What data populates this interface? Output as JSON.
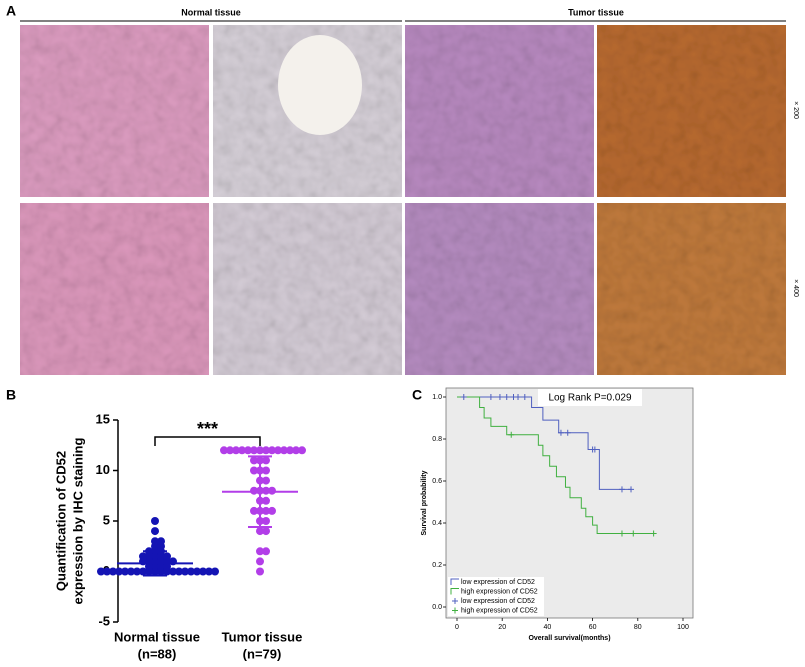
{
  "panel_a": {
    "panel": "A",
    "headers": [
      "Normal tissue",
      "Tumor tissue"
    ],
    "magnifications": [
      "× 200",
      "× 400"
    ]
  },
  "chart_data": [
    {
      "type": "strip",
      "panel": "B",
      "ylabel": [
        "Quantification of CD52",
        "expression by IHC staining"
      ],
      "categories": [
        "Normal tissue",
        "Tumor tissue"
      ],
      "category_notes": [
        "(n=88)",
        "(n=79)"
      ],
      "annotation": "***",
      "ylim": [
        -5,
        15
      ],
      "yticks": [
        -5,
        0,
        5,
        10,
        15
      ],
      "series": [
        {
          "color": "#1414b4",
          "mean": 0.8,
          "sd": 1.2,
          "values": [
            0,
            0,
            0,
            0,
            0,
            0,
            0,
            0,
            0,
            0,
            0,
            0,
            0,
            0,
            0,
            0,
            0,
            0,
            0,
            0,
            0.5,
            0.5,
            0.5,
            0.5,
            1,
            1,
            1,
            1,
            1,
            1,
            1.5,
            1.5,
            1.5,
            1.5,
            1.5,
            2,
            2,
            2,
            2.5,
            2.5,
            3,
            3,
            4,
            5
          ]
        },
        {
          "color": "#b23ee8",
          "mean": 7.9,
          "sd": 3.5,
          "values": [
            12,
            12,
            12,
            12,
            12,
            12,
            12,
            12,
            12,
            12,
            12,
            12,
            12,
            12,
            11,
            11,
            11,
            10,
            10,
            10,
            9,
            9,
            8,
            8,
            8,
            8,
            7,
            7,
            6,
            6,
            6,
            6,
            5,
            5,
            4,
            4,
            2,
            2,
            1,
            0
          ]
        }
      ]
    },
    {
      "type": "km",
      "panel": "C",
      "annotation": "Log Rank P=0.029",
      "xlabel": "Overall survival(months)",
      "ylabel": "Survival probability",
      "xlim": [
        0,
        100
      ],
      "xticks": [
        0,
        20,
        40,
        60,
        80,
        100
      ],
      "ylim": [
        0,
        1
      ],
      "yticks": [
        {
          "value": 0,
          "label": "0.0"
        },
        {
          "value": 0.2,
          "label": "0.2"
        },
        {
          "value": 0.4,
          "label": "0.4"
        },
        {
          "value": 0.6,
          "label": "0.6"
        },
        {
          "value": 0.8,
          "label": "0.8"
        },
        {
          "value": 1,
          "label": "1.0"
        }
      ],
      "series": [
        {
          "name": "low expression of CD52",
          "color": "#5060c0",
          "kind": "line",
          "x": [
            0,
            33,
            38,
            45,
            58,
            63,
            77
          ],
          "values": [
            1,
            0.95,
            0.89,
            0.83,
            0.75,
            0.56,
            0.56
          ]
        },
        {
          "name": "high expression of CD52",
          "color": "#40b040",
          "kind": "line",
          "x": [
            0,
            10,
            12,
            15,
            22,
            36,
            38,
            41,
            44,
            48,
            50,
            55,
            57,
            60,
            62,
            87
          ],
          "values": [
            1,
            0.95,
            0.9,
            0.86,
            0.82,
            0.77,
            0.72,
            0.67,
            0.62,
            0.57,
            0.52,
            0.47,
            0.43,
            0.39,
            0.35,
            0.35
          ]
        },
        {
          "name": "low expression of CD52",
          "color": "#5060c0",
          "kind": "censored",
          "x": [
            3,
            15,
            19,
            22,
            25,
            27,
            30,
            46,
            49,
            60,
            61,
            73,
            77
          ],
          "values": [
            1,
            1,
            1,
            1,
            1,
            1,
            1,
            0.83,
            0.83,
            0.75,
            0.75,
            0.56,
            0.56
          ]
        },
        {
          "name": "high expression of CD52",
          "color": "#40b040",
          "kind": "censored",
          "x": [
            24,
            73,
            78,
            87
          ],
          "values": [
            0.82,
            0.35,
            0.35,
            0.35
          ]
        }
      ]
    }
  ]
}
